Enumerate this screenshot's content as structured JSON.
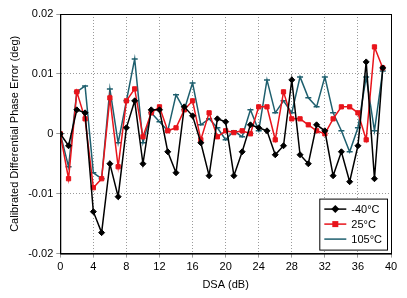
{
  "chart_data": {
    "type": "line",
    "x_label": "DSA (dB)",
    "y_label": "Calibrated Differential Phase Error (deg)",
    "x": [
      0,
      1,
      2,
      3,
      4,
      5,
      6,
      7,
      8,
      9,
      10,
      11,
      12,
      13,
      14,
      15,
      16,
      17,
      18,
      19,
      20,
      21,
      22,
      23,
      24,
      25,
      26,
      27,
      28,
      29,
      30,
      31,
      32,
      33,
      34,
      35,
      36,
      37,
      38,
      39
    ],
    "series": [
      {
        "name": "-40°C",
        "color": "#000000",
        "marker": "diamond",
        "values": [
          0,
          -0.002,
          0.004,
          0.0035,
          -0.013,
          -0.0165,
          -0.005,
          -0.0105,
          0.001,
          0.0055,
          -0.005,
          0.004,
          0.004,
          -0.003,
          -0.0065,
          0.0045,
          0.003,
          -0.0015,
          -0.007,
          0.0025,
          0.002,
          -0.007,
          -0.003,
          0.0015,
          0.001,
          0.0005,
          -0.0035,
          -0.002,
          0.009,
          -0.0035,
          -0.005,
          0.0015,
          0.0005,
          -0.007,
          -0.003,
          -0.008,
          -0.002,
          0.012,
          -0.0075,
          0.011
        ]
      },
      {
        "name": "25°C",
        "color": "#e8141b",
        "marker": "square",
        "values": [
          0,
          -0.0075,
          0.007,
          0.0025,
          -0.009,
          -0.0075,
          0.006,
          -0.0055,
          0.0055,
          0.0075,
          -0.0005,
          0.0035,
          0.0045,
          0.0005,
          0.001,
          0.004,
          0.0055,
          -0.001,
          0.0035,
          -0.0005,
          0.0005,
          0.0002,
          0.0005,
          0,
          0.0045,
          0.0045,
          -0.001,
          0.007,
          0.0025,
          0.0025,
          0.0015,
          0.0005,
          0,
          0.0025,
          0.0045,
          0.0045,
          0.0035,
          -0.001,
          0.0145,
          0.011
        ]
      },
      {
        "name": "105°C",
        "color": "#1e5f6e",
        "marker": "dash",
        "values": [
          0,
          -0.0055,
          0.007,
          0.008,
          -0.0065,
          -0.0075,
          0.0075,
          -0.0015,
          0.0055,
          0.0125,
          -0.0015,
          0.0035,
          0.002,
          0.0005,
          0.0065,
          0.004,
          0.0085,
          0.0015,
          0.0025,
          0.001,
          -0.001,
          0.0005,
          -0.0005,
          0.004,
          0.0005,
          0.009,
          0.0035,
          0.0055,
          0.0035,
          0.0095,
          0.006,
          0.0045,
          0.0095,
          0.0035,
          0.0005,
          -0.003,
          0.001,
          0.0095,
          0.0005,
          0.0105
        ]
      }
    ],
    "xlim": [
      0,
      40
    ],
    "xticks": [
      0,
      4,
      8,
      12,
      16,
      20,
      24,
      28,
      32,
      36,
      40
    ],
    "ylim": [
      -0.02,
      0.02
    ],
    "yticks": [
      -0.02,
      -0.01,
      0,
      0.01,
      0.02
    ],
    "grid": true,
    "legend": "lower right"
  }
}
